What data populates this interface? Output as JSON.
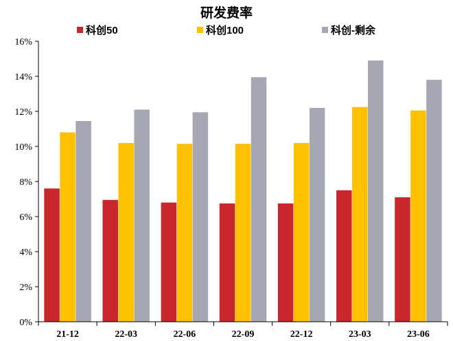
{
  "chart_data": {
    "type": "bar",
    "title": "研发费率",
    "categories": [
      "21-12",
      "22-03",
      "22-06",
      "22-09",
      "22-12",
      "23-03",
      "23-06"
    ],
    "series": [
      {
        "name": "科创50",
        "color": "#C9272D",
        "values": [
          7.6,
          6.95,
          6.8,
          6.75,
          6.75,
          7.5,
          7.1
        ]
      },
      {
        "name": "科创100",
        "color": "#FFC000",
        "values": [
          10.8,
          10.2,
          10.15,
          10.15,
          10.2,
          12.25,
          12.05
        ]
      },
      {
        "name": "科创-剩余",
        "color": "#A5A7B3",
        "values": [
          11.45,
          12.1,
          11.95,
          13.95,
          12.2,
          14.9,
          13.8
        ]
      }
    ],
    "y_ticks": [
      "0%",
      "2%",
      "4%",
      "6%",
      "8%",
      "10%",
      "12%",
      "14%",
      "16%"
    ],
    "ylim": [
      0,
      16
    ],
    "y_unit": "%",
    "xlabel": "",
    "ylabel": "",
    "grid": false,
    "legend_position": "top"
  }
}
